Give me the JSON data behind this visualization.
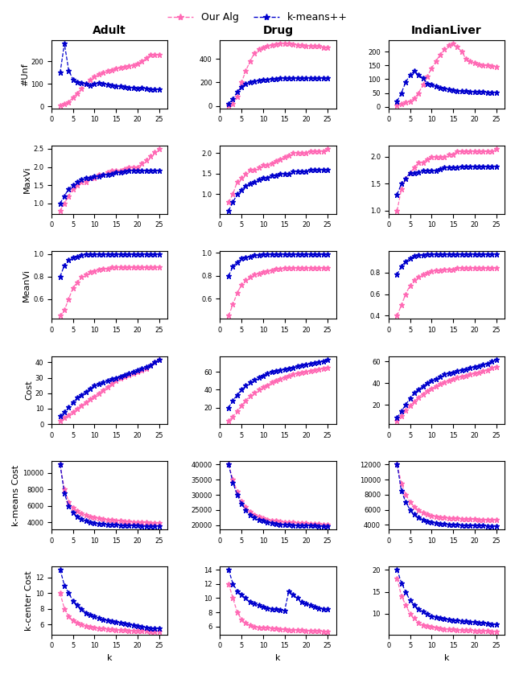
{
  "col_titles": [
    "Adult",
    "Drug",
    "IndianLiver"
  ],
  "row_labels": [
    "#Unf",
    "MaxVi",
    "MeanVi",
    "Cost",
    "k-means Cost",
    "k-center Cost"
  ],
  "xlabel": "k",
  "legend_our_alg": "Our Alg",
  "legend_kmeans": "k-means++",
  "pink_color": "#FF69B4",
  "blue_color": "#0000CD",
  "k_values": [
    2,
    3,
    4,
    5,
    6,
    7,
    8,
    9,
    10,
    11,
    12,
    13,
    14,
    15,
    16,
    17,
    18,
    19,
    20,
    21,
    22,
    23,
    24,
    25
  ],
  "adult_unf_pink": [
    5,
    10,
    20,
    40,
    60,
    80,
    100,
    120,
    135,
    145,
    150,
    158,
    162,
    168,
    172,
    178,
    182,
    185,
    190,
    200,
    215,
    230,
    230,
    230
  ],
  "adult_unf_blue": [
    150,
    280,
    160,
    120,
    110,
    105,
    100,
    95,
    100,
    105,
    100,
    98,
    95,
    90,
    90,
    88,
    85,
    85,
    80,
    82,
    80,
    78,
    75,
    75
  ],
  "drug_unf_pink": [
    5,
    20,
    80,
    200,
    300,
    380,
    450,
    480,
    500,
    510,
    520,
    525,
    530,
    530,
    530,
    525,
    520,
    515,
    510,
    510,
    510,
    510,
    500,
    500
  ],
  "drug_unf_blue": [
    20,
    60,
    120,
    160,
    190,
    200,
    210,
    215,
    220,
    225,
    230,
    232,
    235,
    237,
    238,
    237,
    238,
    238,
    238,
    238,
    238,
    238,
    238,
    238
  ],
  "indian_unf_pink": [
    5,
    10,
    15,
    20,
    30,
    50,
    80,
    110,
    140,
    165,
    190,
    210,
    225,
    230,
    220,
    200,
    175,
    165,
    160,
    155,
    150,
    150,
    148,
    145
  ],
  "indian_unf_blue": [
    20,
    50,
    90,
    115,
    130,
    115,
    105,
    85,
    80,
    75,
    70,
    65,
    62,
    60,
    58,
    57,
    56,
    55,
    55,
    54,
    54,
    53,
    53,
    52
  ],
  "adult_maxvi_pink": [
    0.8,
    1.0,
    1.2,
    1.4,
    1.5,
    1.6,
    1.6,
    1.7,
    1.7,
    1.8,
    1.8,
    1.85,
    1.9,
    1.9,
    1.9,
    1.95,
    2.0,
    2.0,
    2.0,
    2.1,
    2.2,
    2.3,
    2.4,
    2.5
  ],
  "adult_maxvi_blue": [
    1.0,
    1.2,
    1.4,
    1.5,
    1.6,
    1.65,
    1.7,
    1.7,
    1.75,
    1.75,
    1.8,
    1.8,
    1.82,
    1.85,
    1.85,
    1.87,
    1.9,
    1.9,
    1.9,
    1.9,
    1.9,
    1.9,
    1.9,
    1.9
  ],
  "drug_maxvi_pink": [
    0.8,
    1.0,
    1.3,
    1.4,
    1.5,
    1.6,
    1.6,
    1.65,
    1.7,
    1.7,
    1.75,
    1.8,
    1.85,
    1.9,
    1.95,
    2.0,
    2.0,
    2.0,
    2.0,
    2.05,
    2.05,
    2.05,
    2.05,
    2.1
  ],
  "drug_maxvi_blue": [
    0.6,
    0.8,
    1.0,
    1.1,
    1.2,
    1.25,
    1.3,
    1.35,
    1.4,
    1.4,
    1.45,
    1.45,
    1.5,
    1.5,
    1.5,
    1.55,
    1.55,
    1.55,
    1.55,
    1.6,
    1.6,
    1.6,
    1.6,
    1.6
  ],
  "indian_maxvi_pink": [
    1.0,
    1.4,
    1.6,
    1.7,
    1.8,
    1.9,
    1.9,
    1.95,
    2.0,
    2.0,
    2.0,
    2.0,
    2.05,
    2.05,
    2.1,
    2.1,
    2.1,
    2.1,
    2.1,
    2.1,
    2.1,
    2.1,
    2.1,
    2.15
  ],
  "indian_maxvi_blue": [
    1.3,
    1.5,
    1.6,
    1.7,
    1.7,
    1.72,
    1.75,
    1.75,
    1.75,
    1.75,
    1.78,
    1.8,
    1.8,
    1.8,
    1.8,
    1.82,
    1.82,
    1.82,
    1.82,
    1.82,
    1.82,
    1.82,
    1.82,
    1.82
  ],
  "adult_meanvi_pink": [
    0.45,
    0.5,
    0.6,
    0.7,
    0.75,
    0.8,
    0.82,
    0.84,
    0.85,
    0.86,
    0.87,
    0.87,
    0.88,
    0.88,
    0.88,
    0.88,
    0.88,
    0.88,
    0.88,
    0.88,
    0.88,
    0.88,
    0.88,
    0.88
  ],
  "adult_meanvi_blue": [
    0.8,
    0.9,
    0.95,
    0.97,
    0.98,
    0.99,
    1.0,
    1.0,
    1.0,
    1.0,
    1.0,
    1.0,
    1.0,
    1.0,
    1.0,
    1.0,
    1.0,
    1.0,
    1.0,
    1.0,
    1.0,
    1.0,
    1.0,
    1.0
  ],
  "drug_meanvi_pink": [
    0.45,
    0.55,
    0.65,
    0.72,
    0.76,
    0.79,
    0.81,
    0.82,
    0.83,
    0.84,
    0.85,
    0.86,
    0.86,
    0.87,
    0.87,
    0.87,
    0.87,
    0.87,
    0.87,
    0.87,
    0.87,
    0.87,
    0.87,
    0.87
  ],
  "drug_meanvi_blue": [
    0.8,
    0.88,
    0.92,
    0.95,
    0.96,
    0.97,
    0.98,
    0.98,
    0.99,
    0.99,
    0.99,
    0.99,
    0.99,
    0.99,
    0.99,
    0.99,
    0.99,
    0.99,
    0.99,
    0.99,
    0.99,
    0.99,
    0.99,
    0.99
  ],
  "indian_meanvi_pink": [
    0.4,
    0.5,
    0.6,
    0.68,
    0.73,
    0.76,
    0.78,
    0.8,
    0.81,
    0.82,
    0.82,
    0.83,
    0.83,
    0.83,
    0.84,
    0.84,
    0.84,
    0.84,
    0.84,
    0.84,
    0.84,
    0.84,
    0.84,
    0.84
  ],
  "indian_meanvi_blue": [
    0.78,
    0.86,
    0.9,
    0.93,
    0.95,
    0.96,
    0.96,
    0.97,
    0.97,
    0.97,
    0.97,
    0.97,
    0.97,
    0.97,
    0.97,
    0.97,
    0.97,
    0.97,
    0.97,
    0.97,
    0.97,
    0.97,
    0.97,
    0.97
  ],
  "adult_cost_pink": [
    2,
    4,
    6,
    8,
    10,
    12,
    14,
    16,
    18,
    20,
    22,
    24,
    26,
    28,
    30,
    31,
    32,
    33,
    34,
    35,
    36,
    38,
    40,
    42
  ],
  "adult_cost_blue": [
    5,
    8,
    11,
    14,
    17,
    19,
    21,
    23,
    25,
    26,
    27,
    28,
    29,
    30,
    31,
    32,
    33,
    34,
    35,
    36,
    37,
    38,
    40,
    42
  ],
  "drug_cost_pink": [
    5,
    10,
    16,
    22,
    28,
    33,
    37,
    40,
    43,
    45,
    48,
    50,
    52,
    54,
    56,
    57,
    58,
    59,
    60,
    61,
    62,
    63,
    64,
    65
  ],
  "drug_cost_blue": [
    20,
    28,
    34,
    40,
    45,
    48,
    51,
    54,
    56,
    58,
    60,
    61,
    62,
    63,
    64,
    65,
    66,
    67,
    68,
    69,
    70,
    71,
    72,
    74
  ],
  "indian_cost_pink": [
    5,
    10,
    15,
    19,
    23,
    27,
    30,
    33,
    35,
    37,
    39,
    41,
    42,
    44,
    45,
    46,
    47,
    48,
    49,
    50,
    51,
    52,
    54,
    55
  ],
  "indian_cost_blue": [
    8,
    14,
    20,
    26,
    31,
    34,
    37,
    40,
    42,
    44,
    46,
    48,
    49,
    50,
    51,
    52,
    53,
    54,
    55,
    56,
    57,
    58,
    60,
    62
  ],
  "adult_kmcost_pink": [
    11000,
    8000,
    6500,
    5800,
    5400,
    5100,
    4900,
    4700,
    4600,
    4500,
    4400,
    4350,
    4300,
    4250,
    4200,
    4150,
    4100,
    4080,
    4050,
    4020,
    4000,
    3980,
    3960,
    3940
  ],
  "adult_kmcost_blue": [
    11000,
    7500,
    6000,
    5200,
    4700,
    4400,
    4200,
    4050,
    3950,
    3880,
    3820,
    3780,
    3750,
    3720,
    3700,
    3680,
    3660,
    3640,
    3620,
    3600,
    3590,
    3580,
    3570,
    3560
  ],
  "drug_kmcost_pink": [
    40000,
    35000,
    31000,
    28000,
    26000,
    24500,
    23500,
    22800,
    22300,
    21900,
    21600,
    21400,
    21200,
    21100,
    21000,
    20900,
    20800,
    20700,
    20600,
    20500,
    20400,
    20400,
    20300,
    20200
  ],
  "drug_kmcost_blue": [
    40000,
    34000,
    30000,
    27000,
    25000,
    23500,
    22500,
    21900,
    21400,
    21000,
    20700,
    20500,
    20300,
    20200,
    20100,
    20050,
    20000,
    19950,
    19900,
    19850,
    19800,
    19750,
    19700,
    19650
  ],
  "indian_kmcost_pink": [
    12000,
    9500,
    8000,
    7000,
    6400,
    5900,
    5600,
    5400,
    5200,
    5100,
    5000,
    4950,
    4900,
    4860,
    4830,
    4800,
    4780,
    4760,
    4740,
    4720,
    4700,
    4680,
    4660,
    4640
  ],
  "indian_kmcost_blue": [
    12000,
    8500,
    7000,
    6000,
    5400,
    5000,
    4700,
    4500,
    4350,
    4250,
    4170,
    4110,
    4060,
    4020,
    3990,
    3970,
    3950,
    3930,
    3910,
    3890,
    3870,
    3850,
    3830,
    3810
  ],
  "adult_kccost_pink": [
    10,
    8,
    7,
    6.5,
    6.2,
    6.0,
    5.8,
    5.7,
    5.6,
    5.5,
    5.5,
    5.4,
    5.4,
    5.3,
    5.3,
    5.3,
    5.2,
    5.2,
    5.2,
    5.2,
    5.2,
    5.1,
    5.1,
    5.1
  ],
  "adult_kccost_blue": [
    13,
    11,
    10,
    9,
    8.5,
    8,
    7.5,
    7.2,
    7.0,
    6.8,
    6.6,
    6.5,
    6.4,
    6.3,
    6.2,
    6.1,
    6.0,
    5.9,
    5.8,
    5.7,
    5.6,
    5.5,
    5.5,
    5.5
  ],
  "drug_kccost_pink": [
    12,
    10,
    8,
    7,
    6.5,
    6.2,
    6.0,
    5.9,
    5.8,
    5.8,
    5.7,
    5.7,
    5.6,
    5.6,
    5.5,
    5.5,
    5.5,
    5.5,
    5.4,
    5.4,
    5.4,
    5.4,
    5.3,
    5.3
  ],
  "drug_kccost_blue": [
    14,
    12,
    11,
    10.5,
    10,
    9.5,
    9.2,
    9.0,
    8.8,
    8.6,
    8.5,
    8.4,
    8.3,
    8.2,
    11,
    10.5,
    10,
    9.5,
    9.2,
    9.0,
    8.8,
    8.6,
    8.5,
    8.4
  ],
  "indian_kccost_pink": [
    18,
    14,
    12,
    10,
    9,
    8,
    7.5,
    7.2,
    7.0,
    6.8,
    6.7,
    6.6,
    6.5,
    6.5,
    6.4,
    6.4,
    6.3,
    6.3,
    6.2,
    6.2,
    6.1,
    6.1,
    6.0,
    6.0
  ],
  "indian_kccost_blue": [
    20,
    17,
    15,
    13,
    12,
    11,
    10.5,
    10.0,
    9.5,
    9.2,
    9.0,
    8.8,
    8.7,
    8.6,
    8.5,
    8.4,
    8.3,
    8.2,
    8.1,
    8.0,
    7.9,
    7.8,
    7.7,
    7.6
  ]
}
